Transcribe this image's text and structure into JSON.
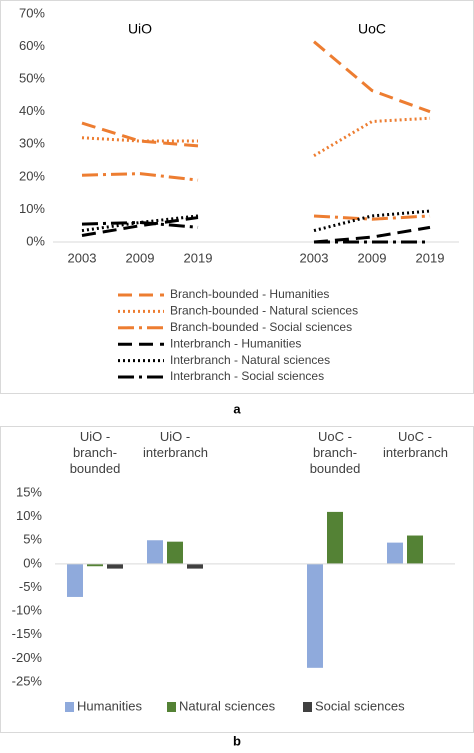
{
  "chart_data": [
    {
      "type": "line",
      "caption": "a",
      "groups": [
        "UiO",
        "UoC"
      ],
      "categories": [
        "2003",
        "2009",
        "2019",
        null,
        "2003",
        "2009",
        "2019"
      ],
      "ylim": [
        0,
        70
      ],
      "yticks": [
        {
          "value": 0,
          "label": "0%"
        },
        {
          "value": 10,
          "label": "10%"
        },
        {
          "value": 20,
          "label": "20%"
        },
        {
          "value": 30,
          "label": "30%"
        },
        {
          "value": 40,
          "label": "40%"
        },
        {
          "value": 50,
          "label": "50%"
        },
        {
          "value": 60,
          "label": "60%"
        },
        {
          "value": 70,
          "label": "70%"
        }
      ],
      "series": [
        {
          "name": "Branch-bounded - Humanities",
          "color": "#ed7d31",
          "style": "longdash",
          "values": [
            36.5,
            31,
            29.5,
            null,
            61.5,
            46.5,
            40
          ]
        },
        {
          "name": "Branch-bounded - Natural sciences",
          "color": "#ed7d31",
          "style": "dotted",
          "values": [
            32,
            31,
            31,
            null,
            26.5,
            37,
            38
          ]
        },
        {
          "name": "Branch-bounded - Social sciences",
          "color": "#ed7d31",
          "style": "dashdot",
          "values": [
            20.5,
            21,
            19,
            null,
            8,
            7,
            8
          ]
        },
        {
          "name": "Interbranch - Humanities",
          "color": "#000000",
          "style": "longdash",
          "values": [
            2,
            5,
            7.5,
            null,
            0,
            1.5,
            4.5
          ]
        },
        {
          "name": "Interbranch - Natural sciences",
          "color": "#000000",
          "style": "dotted",
          "values": [
            3.5,
            6,
            8,
            null,
            3.5,
            8,
            9.5
          ]
        },
        {
          "name": "Interbranch - Social sciences",
          "color": "#000000",
          "style": "dashdot",
          "values": [
            5.5,
            6,
            4.5,
            null,
            0,
            0,
            0
          ]
        }
      ]
    },
    {
      "type": "bar",
      "caption": "b",
      "categories": [
        "UiO - branch-bounded",
        "UiO - interbranch",
        null,
        "UoC - branch-bounded",
        "UoC - interbranch"
      ],
      "ylim": [
        -25,
        15
      ],
      "yticks": [
        {
          "value": -25,
          "label": "-25%"
        },
        {
          "value": -20,
          "label": "-20%"
        },
        {
          "value": -15,
          "label": "-15%"
        },
        {
          "value": -10,
          "label": "-10%"
        },
        {
          "value": -5,
          "label": "-5%"
        },
        {
          "value": 0,
          "label": "0%"
        },
        {
          "value": 5,
          "label": "5%"
        },
        {
          "value": 10,
          "label": "10%"
        },
        {
          "value": 15,
          "label": "15%"
        }
      ],
      "series": [
        {
          "name": "Humanities",
          "color": "#8faadc",
          "values": [
            -7,
            5,
            null,
            -22,
            4.5
          ]
        },
        {
          "name": "Natural sciences",
          "color": "#548235",
          "values": [
            -0.5,
            4.7,
            null,
            11,
            6
          ]
        },
        {
          "name": "Social sciences",
          "color": "#404040",
          "values": [
            -1,
            -1,
            null,
            null,
            null
          ]
        }
      ]
    }
  ]
}
